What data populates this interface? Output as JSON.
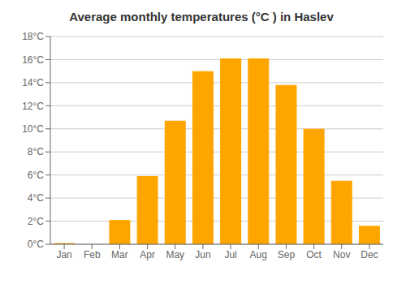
{
  "chart_data": {
    "type": "bar",
    "title": "Average monthly temperatures (°C ) in Haslev",
    "categories": [
      "Jan",
      "Feb",
      "Mar",
      "Apr",
      "May",
      "Jun",
      "Jul",
      "Aug",
      "Sep",
      "Oct",
      "Nov",
      "Dec"
    ],
    "values": [
      0.1,
      0.0,
      2.1,
      5.9,
      10.7,
      15.0,
      16.1,
      16.1,
      13.8,
      10.0,
      5.5,
      1.6
    ],
    "color": "#FFA500",
    "ylim": [
      0,
      18
    ],
    "yticks": [
      {
        "value": 0,
        "label": "0°C"
      },
      {
        "value": 2,
        "label": "2°C"
      },
      {
        "value": 4,
        "label": "4°C"
      },
      {
        "value": 6,
        "label": "6°C"
      },
      {
        "value": 8,
        "label": "8°C"
      },
      {
        "value": 10,
        "label": "10°C"
      },
      {
        "value": 12,
        "label": "12°C"
      },
      {
        "value": 14,
        "label": "14°C"
      },
      {
        "value": 16,
        "label": "16°C"
      },
      {
        "value": 18,
        "label": "18°C"
      }
    ],
    "grid": true
  }
}
